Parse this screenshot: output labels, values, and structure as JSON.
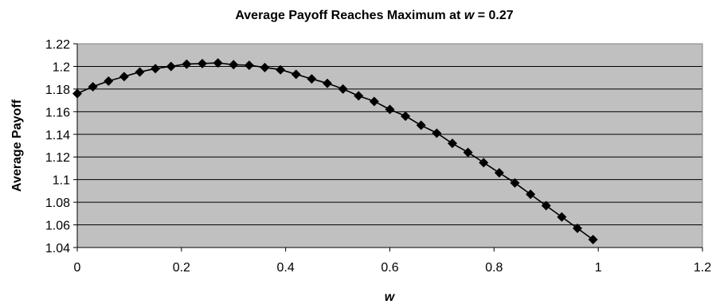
{
  "chart_data": {
    "type": "line",
    "title_prefix": "Average Payoff Reaches Maximum at ",
    "title_var": "w",
    "title_suffix": " = 0.27",
    "xlabel": "w",
    "ylabel": "Average Payoff",
    "xlim": [
      0,
      1.2
    ],
    "ylim": [
      1.04,
      1.22
    ],
    "x_ticks": [
      "0",
      "0.2",
      "0.4",
      "0.6",
      "0.8",
      "1",
      "1.2"
    ],
    "y_ticks": [
      "1.04",
      "1.06",
      "1.08",
      "1.1",
      "1.12",
      "1.14",
      "1.16",
      "1.18",
      "1.2",
      "1.22"
    ],
    "grid": true,
    "series": [
      {
        "marker": "diamond",
        "x": [
          0,
          0.03,
          0.06,
          0.09,
          0.12,
          0.15,
          0.18,
          0.21,
          0.24,
          0.27,
          0.3,
          0.33,
          0.36,
          0.39,
          0.42,
          0.45,
          0.48,
          0.51,
          0.54,
          0.57,
          0.6,
          0.63,
          0.66,
          0.69,
          0.72,
          0.75,
          0.78,
          0.81,
          0.84,
          0.87,
          0.9,
          0.93,
          0.96,
          0.99
        ],
        "y": [
          1.176,
          1.182,
          1.187,
          1.191,
          1.195,
          1.198,
          1.2,
          1.202,
          1.2025,
          1.203,
          1.2015,
          1.201,
          1.199,
          1.197,
          1.193,
          1.189,
          1.185,
          1.18,
          1.174,
          1.169,
          1.162,
          1.156,
          1.148,
          1.141,
          1.132,
          1.124,
          1.115,
          1.106,
          1.097,
          1.087,
          1.077,
          1.067,
          1.057,
          1.047
        ]
      }
    ],
    "colors": {
      "plot_background": "#c0c0c0",
      "gridline": "#000000",
      "series": "#000000"
    }
  }
}
